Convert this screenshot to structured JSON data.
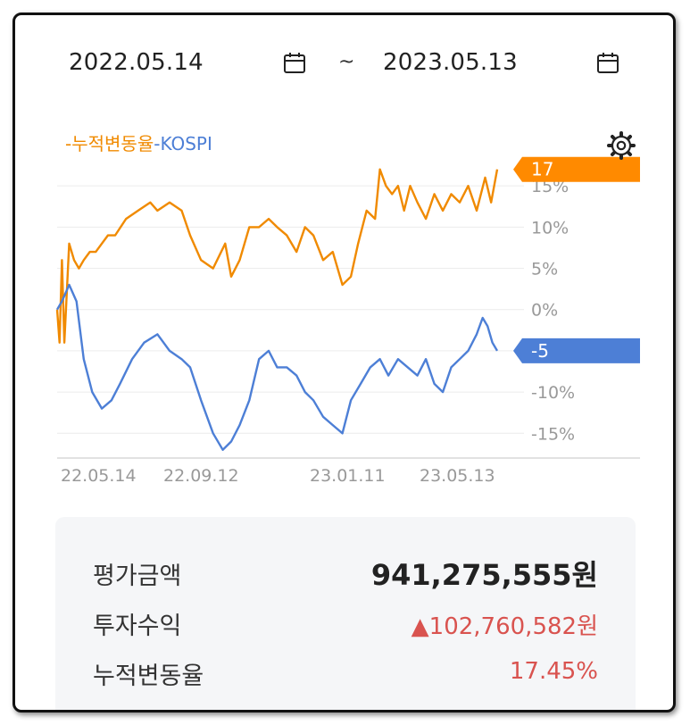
{
  "header": {
    "start_date": "2022.05.14",
    "end_date": "2023.05.13",
    "separator": "~",
    "calendar_icon": "calendar-icon"
  },
  "settings_icon": "gear-icon",
  "chart_data": {
    "type": "line",
    "legend": [
      "누적변동율",
      "KOSPI"
    ],
    "legend_placement": "top-left",
    "x_ticks": [
      "22.05.14",
      "22.09.12",
      "23.01.11",
      "23.05.13"
    ],
    "y_ticks": [
      "15%",
      "10%",
      "5%",
      "0%",
      "-10%",
      "-15%"
    ],
    "ylim": [
      -18,
      20
    ],
    "grid": true,
    "end_labels": [
      {
        "text": "17",
        "color": "#ff8a00"
      },
      {
        "text": "-5",
        "color": "#4d7fd6"
      }
    ],
    "series": [
      {
        "name": "누적변동율",
        "color": "#f08a00",
        "x": [
          "2022-05-14",
          "2022-05-16",
          "2022-05-18",
          "2022-05-20",
          "2022-05-24",
          "2022-05-28",
          "2022-06-01",
          "2022-06-05",
          "2022-06-10",
          "2022-06-15",
          "2022-06-20",
          "2022-06-25",
          "2022-07-01",
          "2022-07-10",
          "2022-07-20",
          "2022-07-30",
          "2022-08-05",
          "2022-08-15",
          "2022-08-25",
          "2022-09-01",
          "2022-09-10",
          "2022-09-20",
          "2022-09-30",
          "2022-10-05",
          "2022-10-12",
          "2022-10-20",
          "2022-10-28",
          "2022-11-05",
          "2022-11-12",
          "2022-11-20",
          "2022-11-28",
          "2022-12-05",
          "2022-12-12",
          "2022-12-20",
          "2022-12-28",
          "2023-01-05",
          "2023-01-12",
          "2023-01-18",
          "2023-01-25",
          "2023-02-01",
          "2023-02-05",
          "2023-02-10",
          "2023-02-15",
          "2023-02-20",
          "2023-02-25",
          "2023-03-02",
          "2023-03-08",
          "2023-03-15",
          "2023-03-22",
          "2023-03-29",
          "2023-04-05",
          "2023-04-12",
          "2023-04-19",
          "2023-04-26",
          "2023-05-03",
          "2023-05-08",
          "2023-05-13"
        ],
        "values": [
          0,
          -4,
          6,
          -4,
          8,
          6,
          5,
          6,
          7,
          7,
          8,
          9,
          9,
          11,
          12,
          13,
          12,
          13,
          12,
          9,
          6,
          5,
          8,
          4,
          6,
          10,
          10,
          11,
          10,
          9,
          7,
          10,
          9,
          6,
          7,
          3,
          4,
          8,
          12,
          11,
          17,
          15,
          14,
          15,
          12,
          15,
          13,
          11,
          14,
          12,
          14,
          13,
          15,
          12,
          16,
          13,
          17
        ]
      },
      {
        "name": "KOSPI",
        "color": "#4d7fd6",
        "x": [
          "2022-05-14",
          "2022-05-18",
          "2022-05-24",
          "2022-05-30",
          "2022-06-05",
          "2022-06-12",
          "2022-06-20",
          "2022-06-28",
          "2022-07-05",
          "2022-07-15",
          "2022-07-25",
          "2022-08-05",
          "2022-08-15",
          "2022-08-25",
          "2022-09-01",
          "2022-09-10",
          "2022-09-20",
          "2022-09-28",
          "2022-10-05",
          "2022-10-12",
          "2022-10-20",
          "2022-10-28",
          "2022-11-05",
          "2022-11-12",
          "2022-11-20",
          "2022-11-28",
          "2022-12-05",
          "2022-12-12",
          "2022-12-20",
          "2022-12-28",
          "2023-01-05",
          "2023-01-12",
          "2023-01-20",
          "2023-01-28",
          "2023-02-05",
          "2023-02-12",
          "2023-02-20",
          "2023-02-28",
          "2023-03-08",
          "2023-03-15",
          "2023-03-22",
          "2023-03-29",
          "2023-04-05",
          "2023-04-12",
          "2023-04-19",
          "2023-04-26",
          "2023-05-01",
          "2023-05-05",
          "2023-05-09",
          "2023-05-13"
        ],
        "values": [
          0,
          1,
          3,
          1,
          -6,
          -10,
          -12,
          -11,
          -9,
          -6,
          -4,
          -3,
          -5,
          -6,
          -7,
          -11,
          -15,
          -17,
          -16,
          -14,
          -11,
          -6,
          -5,
          -7,
          -7,
          -8,
          -10,
          -11,
          -13,
          -14,
          -15,
          -11,
          -9,
          -7,
          -6,
          -8,
          -6,
          -7,
          -8,
          -6,
          -9,
          -10,
          -7,
          -6,
          -5,
          -3,
          -1,
          -2,
          -4,
          -5
        ]
      }
    ]
  },
  "summary": {
    "rows": [
      {
        "label": "평가금액",
        "value": "941,275,555원"
      },
      {
        "label": "투자수익",
        "value": "▲102,760,582원"
      },
      {
        "label": "누적변동율",
        "value": "17.45%"
      }
    ]
  }
}
